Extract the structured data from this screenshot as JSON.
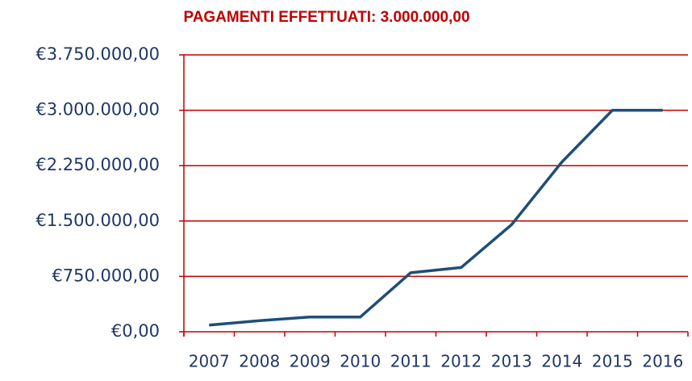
{
  "chart_data": {
    "type": "line",
    "title": "PAGAMENTI EFFETTUATI: 3.000.000,00",
    "categories": [
      "2007",
      "2008",
      "2009",
      "2010",
      "2011",
      "2012",
      "2013",
      "2014",
      "2015",
      "2016"
    ],
    "series": [
      {
        "color": "#1f4e79",
        "values": [
          90000,
          150000,
          200000,
          200000,
          800000,
          870000,
          1450000,
          2300000,
          3000000,
          3000000
        ]
      }
    ],
    "ylim": [
      0,
      3750000
    ],
    "yticks": [
      {
        "value": 0,
        "label": "€0,00"
      },
      {
        "value": 750000,
        "label": "€750.000,00"
      },
      {
        "value": 1500000,
        "label": "€1.500.000,00"
      },
      {
        "value": 2250000,
        "label": "€2.250.000,00"
      },
      {
        "value": 3000000,
        "label": "€3.000.000,00"
      },
      {
        "value": 3750000,
        "label": "€3.750.000,00"
      }
    ],
    "grid": true,
    "grid_color": "#c00000"
  }
}
